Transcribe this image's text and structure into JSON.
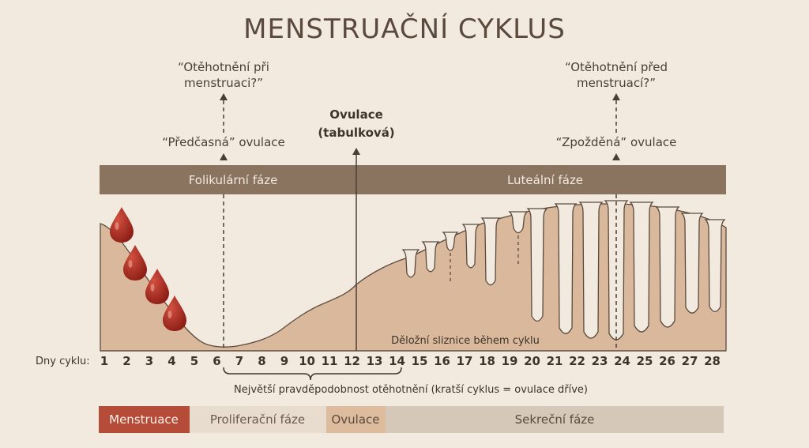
{
  "title": "MENSTRUAČNÍ CYKLUS",
  "annotations": {
    "early_pregnancy_question": [
      "“Otěhotnění při",
      "menstruaci?”"
    ],
    "early_ovulation": "“Předčasná” ovulace",
    "textbook_ovulation": [
      "Ovulace",
      "(tabulková)"
    ],
    "late_pregnancy_question": [
      "“Otěhotnění před",
      "menstruací?”"
    ],
    "late_ovulation": "“Zpožděná” ovulace"
  },
  "phases": {
    "follicular": "Folikulární fáze",
    "luteal": "Luteální fáze"
  },
  "endometrium_label": "Děložní sliznice během cyklu",
  "days_label": "Dny cyklu:",
  "days": [
    "1",
    "2",
    "3",
    "4",
    "5",
    "6",
    "7",
    "8",
    "9",
    "10",
    "11",
    "12",
    "13",
    "14",
    "15",
    "16",
    "17",
    "18",
    "19",
    "20",
    "21",
    "22",
    "23",
    "24",
    "25",
    "26",
    "27",
    "28"
  ],
  "fertility_note": "Největší pravděpodobnost otěhotnění (kratší cyklus = ovulace dříve)",
  "legend": {
    "menstruation": "Menstruace",
    "proliferative": "Proliferační fáze",
    "ovulation": "Ovulace",
    "secretory": "Sekreční fáze"
  },
  "colors": {
    "background": "#f3eadf",
    "phase_bar": "#8a735f",
    "tissue": "#d9b89c",
    "outline": "#5a4a3e",
    "blood": "#a3271d",
    "legend_menstruation": "#b54c3a",
    "legend_proliferative": "#e8dccf",
    "legend_ovulation": "#ddbb9d",
    "legend_secretory": "#d6c8b8"
  }
}
